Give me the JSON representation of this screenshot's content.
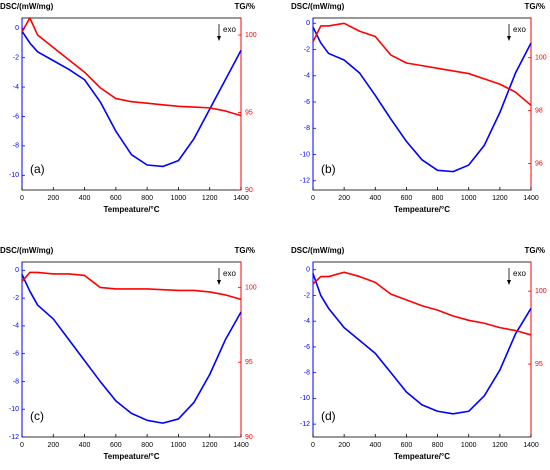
{
  "chart_data": [
    {
      "type": "line",
      "xlabel": "Tempeature/°C",
      "ylabel": "DSC/(mW/mg)",
      "y2label": "TG/%",
      "annotations": [
        "exo",
        "(a)"
      ],
      "x": [
        0,
        50,
        100,
        200,
        300,
        400,
        500,
        600,
        700,
        800,
        900,
        1000,
        1100,
        1200,
        1300,
        1400
      ],
      "xlim": [
        0,
        1400
      ],
      "xticks": [
        0,
        200,
        400,
        600,
        800,
        1000,
        1200,
        1400
      ],
      "ylim": [
        -11,
        0.7
      ],
      "yticks": [
        0,
        -2,
        -4,
        -6,
        -8,
        -10
      ],
      "y2lim": [
        90,
        101.1
      ],
      "y2ticks": [
        90,
        95,
        100
      ],
      "series": [
        {
          "color": "#0000ff",
          "values": [
            -0.2,
            -1,
            -1.6,
            -2.2,
            -2.8,
            -3.5,
            -5,
            -7,
            -8.6,
            -9.3,
            -9.4,
            -9,
            -7.5,
            -5.5,
            -3.5,
            -1.5
          ]
        },
        {
          "color": "#ff0000",
          "axis": "y2",
          "values": [
            100.2,
            101.1,
            100,
            99.2,
            98.4,
            97.6,
            96.6,
            95.9,
            95.7,
            95.6,
            95.5,
            95.4,
            95.35,
            95.3,
            95.1,
            94.8
          ]
        }
      ]
    },
    {
      "type": "line",
      "xlabel": "Tempeature/°C",
      "ylabel": "DSC/(mW/mg)",
      "y2label": "TG/%",
      "annotations": [
        "exo",
        "(b)"
      ],
      "x": [
        0,
        50,
        100,
        200,
        300,
        400,
        500,
        600,
        700,
        800,
        900,
        1000,
        1100,
        1200,
        1300,
        1400
      ],
      "xlim": [
        0,
        1400
      ],
      "xticks": [
        0,
        200,
        400,
        600,
        800,
        1000,
        1200,
        1400
      ],
      "ylim": [
        -12.7,
        0.4
      ],
      "yticks": [
        0,
        -2,
        -4,
        -6,
        -8,
        -10,
        -12
      ],
      "y2lim": [
        95,
        101.5
      ],
      "y2ticks": [
        96,
        98,
        100
      ],
      "series": [
        {
          "color": "#0000ff",
          "values": [
            -0.3,
            -1.5,
            -2.3,
            -2.8,
            -3.8,
            -5.5,
            -7.3,
            -9,
            -10.4,
            -11.2,
            -11.3,
            -10.8,
            -9.3,
            -6.8,
            -3.8,
            -1.5
          ]
        },
        {
          "color": "#ff0000",
          "axis": "y2",
          "values": [
            100.6,
            101.2,
            101.2,
            101.3,
            101,
            100.8,
            100.1,
            99.8,
            99.7,
            99.6,
            99.5,
            99.4,
            99.2,
            99,
            98.7,
            98.2
          ]
        }
      ]
    },
    {
      "type": "line",
      "xlabel": "Tempeature/°C",
      "ylabel": "DSC/(mW/mg)",
      "y2label": "TG/%",
      "annotations": [
        "exo",
        "(c)"
      ],
      "x": [
        0,
        50,
        100,
        200,
        300,
        400,
        500,
        600,
        700,
        800,
        900,
        1000,
        1100,
        1200,
        1300,
        1400
      ],
      "xlim": [
        0,
        1400
      ],
      "xticks": [
        0,
        200,
        400,
        600,
        800,
        1000,
        1200,
        1400
      ],
      "ylim": [
        -12,
        0.6
      ],
      "yticks": [
        0,
        -2,
        -4,
        -6,
        -8,
        -10,
        -12
      ],
      "y2lim": [
        90,
        101.7
      ],
      "y2ticks": [
        90,
        95,
        100
      ],
      "series": [
        {
          "color": "#0000ff",
          "values": [
            -0.3,
            -1.5,
            -2.5,
            -3.5,
            -5,
            -6.5,
            -8,
            -9.4,
            -10.3,
            -10.8,
            -11,
            -10.7,
            -9.5,
            -7.5,
            -5,
            -3
          ]
        },
        {
          "color": "#ff0000",
          "axis": "y2",
          "values": [
            100.4,
            101,
            101,
            100.9,
            100.9,
            100.8,
            100,
            99.9,
            99.9,
            99.9,
            99.85,
            99.8,
            99.8,
            99.7,
            99.5,
            99.2
          ]
        }
      ]
    },
    {
      "type": "line",
      "xlabel": "Tempeature/°C",
      "ylabel": "DSC/(mW/mg)",
      "y2label": "TG/%",
      "annotations": [
        "exo",
        "(d)"
      ],
      "x": [
        0,
        50,
        100,
        200,
        300,
        400,
        500,
        600,
        700,
        800,
        900,
        1000,
        1100,
        1200,
        1300,
        1400
      ],
      "xlim": [
        0,
        1400
      ],
      "xticks": [
        0,
        200,
        400,
        600,
        800,
        1000,
        1200,
        1400
      ],
      "ylim": [
        -13,
        0.6
      ],
      "yticks": [
        0,
        -2,
        -4,
        -6,
        -8,
        -10,
        -12
      ],
      "y2lim": [
        90,
        102
      ],
      "y2ticks": [
        95,
        100
      ],
      "series": [
        {
          "color": "#0000ff",
          "values": [
            -0.3,
            -2,
            -3,
            -4.5,
            -5.5,
            -6.5,
            -8,
            -9.5,
            -10.5,
            -11,
            -11.2,
            -11,
            -9.8,
            -7.8,
            -5,
            -3
          ]
        },
        {
          "color": "#ff0000",
          "axis": "y2",
          "values": [
            100.5,
            101,
            101,
            101.3,
            101,
            100.6,
            99.8,
            99.4,
            99,
            98.7,
            98.3,
            98,
            97.8,
            97.5,
            97.3,
            97
          ]
        }
      ]
    }
  ]
}
